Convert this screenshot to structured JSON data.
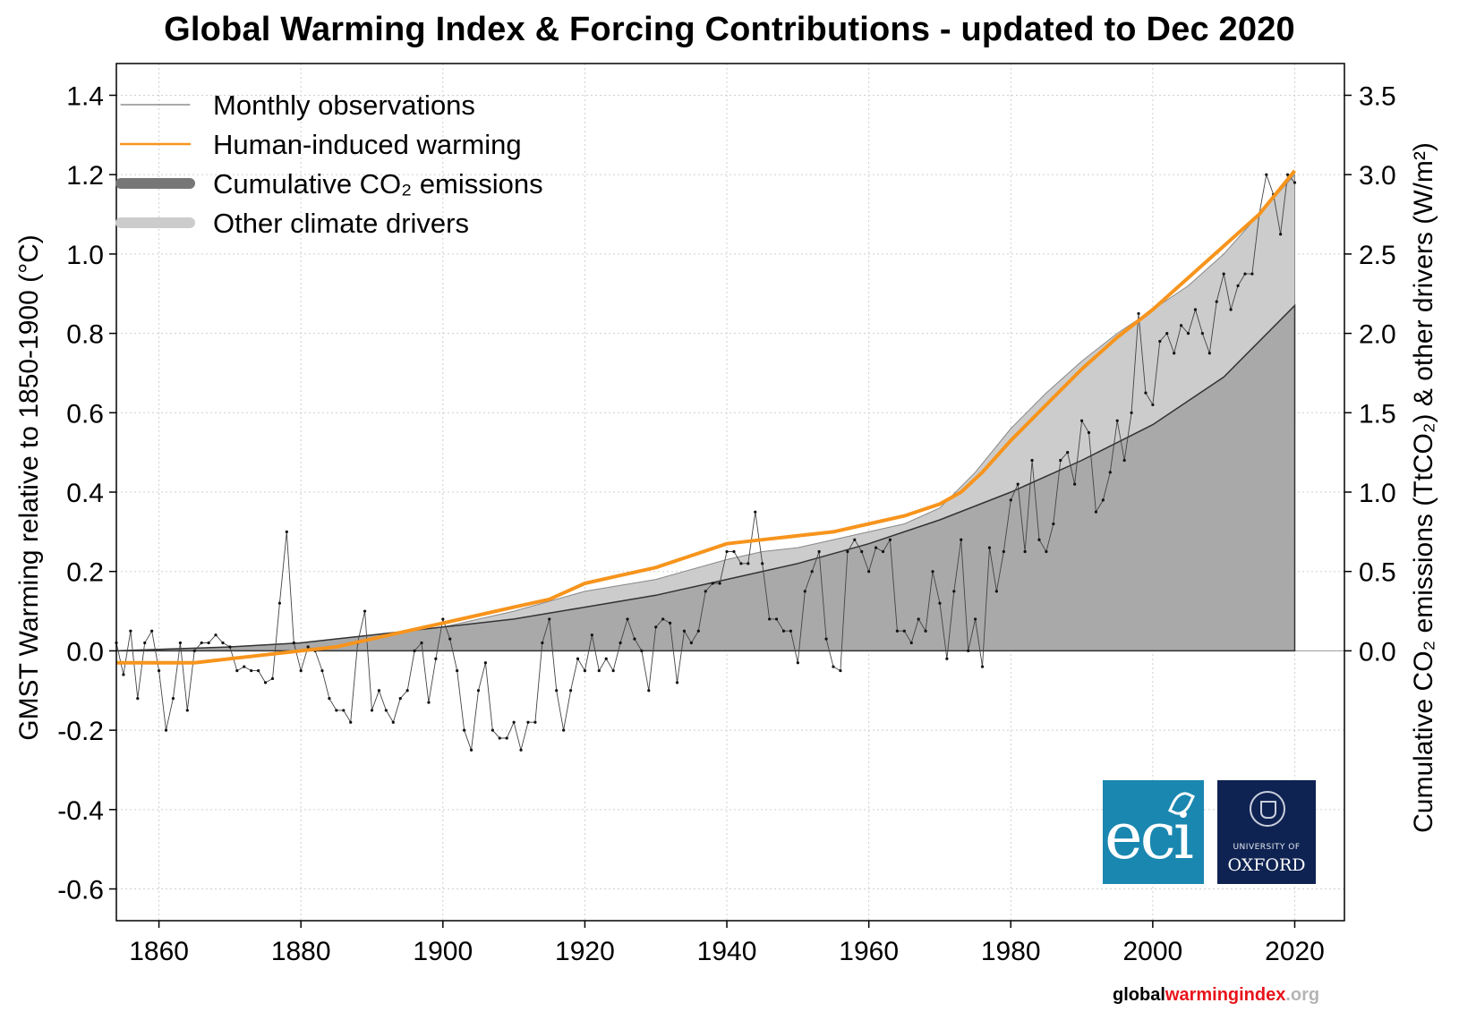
{
  "title": "Global Warming Index & Forcing Contributions - updated to Dec 2020",
  "footer": {
    "part1": "global",
    "part2": "warmingindex",
    "part3": ".org"
  },
  "logos": {
    "eci": "eci",
    "oxford_line1": "UNIVERSITY OF",
    "oxford_line2": "OXFORD"
  },
  "colors": {
    "human_induced": "#f7941d",
    "observations": "#444444",
    "co2_fill": "#a9a9a9",
    "other_fill": "#cccccc",
    "grid": "#cfcfcf"
  },
  "chart_data": {
    "type": "line",
    "title": "Global Warming Index & Forcing Contributions - updated to Dec 2020",
    "ylabel": "GMST Warming relative to 1850-1900 (°C)",
    "ylabel_right": "Cumulative CO₂ emissions (TtCO₂) & other drivers (W/m²)",
    "xlim": [
      1854,
      2027
    ],
    "ylim": [
      -0.68,
      1.48
    ],
    "grid": true,
    "legend_position": "top-left",
    "x_ticks": [
      "1860",
      "1880",
      "1900",
      "1920",
      "1940",
      "1960",
      "1980",
      "2000",
      "2020"
    ],
    "y_ticks": [
      "-0.6",
      "-0.4",
      "-0.2",
      "0.0",
      "0.2",
      "0.4",
      "0.6",
      "0.8",
      "1.0",
      "1.2",
      "1.4"
    ],
    "y_right_ticks": [
      "0.0",
      "0.5",
      "1.0",
      "1.5",
      "2.0",
      "2.5",
      "3.0",
      "3.5"
    ],
    "legend": [
      {
        "label": "Monthly observations",
        "style": "thin-line",
        "color": "#555555"
      },
      {
        "label": "Human-induced warming",
        "style": "line",
        "color": "#f7941d"
      },
      {
        "label": "Cumulative CO₂ emissions",
        "style": "thick-line",
        "color": "#777777"
      },
      {
        "label": "Other climate drivers",
        "style": "thick-line",
        "color": "#cccccc"
      }
    ],
    "series": [
      {
        "name": "Monthly observations",
        "x": [
          1854,
          1855,
          1856,
          1857,
          1858,
          1859,
          1860,
          1861,
          1862,
          1863,
          1864,
          1865,
          1866,
          1867,
          1868,
          1869,
          1870,
          1871,
          1872,
          1873,
          1874,
          1875,
          1876,
          1877,
          1878,
          1879,
          1880,
          1881,
          1882,
          1883,
          1884,
          1885,
          1886,
          1887,
          1888,
          1889,
          1890,
          1891,
          1892,
          1893,
          1894,
          1895,
          1896,
          1897,
          1898,
          1899,
          1900,
          1901,
          1902,
          1903,
          1904,
          1905,
          1906,
          1907,
          1908,
          1909,
          1910,
          1911,
          1912,
          1913,
          1914,
          1915,
          1916,
          1917,
          1918,
          1919,
          1920,
          1921,
          1922,
          1923,
          1924,
          1925,
          1926,
          1927,
          1928,
          1929,
          1930,
          1931,
          1932,
          1933,
          1934,
          1935,
          1936,
          1937,
          1938,
          1939,
          1940,
          1941,
          1942,
          1943,
          1944,
          1945,
          1946,
          1947,
          1948,
          1949,
          1950,
          1951,
          1952,
          1953,
          1954,
          1955,
          1956,
          1957,
          1958,
          1959,
          1960,
          1961,
          1962,
          1963,
          1964,
          1965,
          1966,
          1967,
          1968,
          1969,
          1970,
          1971,
          1972,
          1973,
          1974,
          1975,
          1976,
          1977,
          1978,
          1979,
          1980,
          1981,
          1982,
          1983,
          1984,
          1985,
          1986,
          1987,
          1988,
          1989,
          1990,
          1991,
          1992,
          1993,
          1994,
          1995,
          1996,
          1997,
          1998,
          1999,
          2000,
          2001,
          2002,
          2003,
          2004,
          2005,
          2006,
          2007,
          2008,
          2009,
          2010,
          2011,
          2012,
          2013,
          2014,
          2015,
          2016,
          2017,
          2018,
          2019,
          2020
        ],
        "y": [
          0.02,
          -0.06,
          0.05,
          -0.12,
          0.02,
          0.05,
          -0.05,
          -0.2,
          -0.12,
          0.02,
          -0.15,
          0.0,
          0.02,
          0.02,
          0.04,
          0.02,
          0.01,
          -0.05,
          -0.04,
          -0.05,
          -0.05,
          -0.08,
          -0.07,
          0.12,
          0.3,
          0.02,
          -0.05,
          0.01,
          0.0,
          -0.05,
          -0.12,
          -0.15,
          -0.15,
          -0.18,
          0.02,
          0.1,
          -0.15,
          -0.1,
          -0.15,
          -0.18,
          -0.12,
          -0.1,
          0.0,
          0.02,
          -0.13,
          -0.02,
          0.08,
          0.03,
          -0.05,
          -0.2,
          -0.25,
          -0.1,
          -0.03,
          -0.2,
          -0.22,
          -0.22,
          -0.18,
          -0.25,
          -0.18,
          -0.18,
          0.02,
          0.08,
          -0.1,
          -0.2,
          -0.1,
          -0.02,
          -0.05,
          0.04,
          -0.05,
          -0.02,
          -0.05,
          0.02,
          0.08,
          0.03,
          0.0,
          -0.1,
          0.06,
          0.08,
          0.07,
          -0.08,
          0.05,
          0.02,
          0.05,
          0.15,
          0.17,
          0.17,
          0.25,
          0.25,
          0.22,
          0.22,
          0.35,
          0.22,
          0.08,
          0.08,
          0.05,
          0.05,
          -0.03,
          0.15,
          0.2,
          0.25,
          0.03,
          -0.04,
          -0.05,
          0.25,
          0.28,
          0.25,
          0.2,
          0.26,
          0.25,
          0.28,
          0.05,
          0.05,
          0.02,
          0.08,
          0.05,
          0.2,
          0.12,
          -0.02,
          0.15,
          0.28,
          0.0,
          0.08,
          -0.04,
          0.26,
          0.15,
          0.25,
          0.38,
          0.42,
          0.25,
          0.48,
          0.28,
          0.25,
          0.32,
          0.48,
          0.5,
          0.42,
          0.58,
          0.55,
          0.35,
          0.38,
          0.45,
          0.58,
          0.48,
          0.6,
          0.85,
          0.65,
          0.62,
          0.78,
          0.8,
          0.75,
          0.82,
          0.8,
          0.86,
          0.8,
          0.75,
          0.88,
          0.95,
          0.86,
          0.92,
          0.95,
          0.95,
          1.1,
          1.2,
          1.15,
          1.05,
          1.2,
          1.18
        ]
      },
      {
        "name": "Human-induced warming",
        "x": [
          1854,
          1860,
          1865,
          1870,
          1875,
          1880,
          1885,
          1890,
          1895,
          1900,
          1905,
          1910,
          1915,
          1920,
          1925,
          1930,
          1935,
          1940,
          1945,
          1950,
          1955,
          1960,
          1965,
          1970,
          1973,
          1976,
          1980,
          1985,
          1990,
          1995,
          2000,
          2005,
          2010,
          2015,
          2020
        ],
        "y": [
          -0.03,
          -0.03,
          -0.03,
          -0.02,
          -0.01,
          0.0,
          0.01,
          0.03,
          0.05,
          0.07,
          0.09,
          0.11,
          0.13,
          0.17,
          0.19,
          0.21,
          0.24,
          0.27,
          0.28,
          0.29,
          0.3,
          0.32,
          0.34,
          0.37,
          0.4,
          0.45,
          0.53,
          0.62,
          0.71,
          0.79,
          0.86,
          0.94,
          1.02,
          1.1,
          1.21
        ]
      },
      {
        "name": "Cumulative CO₂ emissions",
        "x": [
          1854,
          1870,
          1880,
          1890,
          1900,
          1910,
          1920,
          1930,
          1940,
          1950,
          1960,
          1970,
          1980,
          1990,
          2000,
          2010,
          2020
        ],
        "y": [
          0.0,
          0.01,
          0.02,
          0.04,
          0.06,
          0.08,
          0.11,
          0.14,
          0.18,
          0.22,
          0.27,
          0.33,
          0.4,
          0.48,
          0.57,
          0.69,
          0.87
        ]
      },
      {
        "name": "Other climate drivers",
        "x": [
          1854,
          1870,
          1880,
          1890,
          1900,
          1910,
          1920,
          1930,
          1940,
          1945,
          1950,
          1955,
          1960,
          1965,
          1970,
          1975,
          1980,
          1985,
          1990,
          1995,
          2000,
          2005,
          2010,
          2015,
          2020
        ],
        "y": [
          0.0,
          0.01,
          0.02,
          0.04,
          0.06,
          0.1,
          0.15,
          0.18,
          0.23,
          0.25,
          0.26,
          0.28,
          0.3,
          0.32,
          0.36,
          0.45,
          0.56,
          0.65,
          0.73,
          0.8,
          0.86,
          0.92,
          1.0,
          1.1,
          1.2
        ]
      }
    ]
  }
}
